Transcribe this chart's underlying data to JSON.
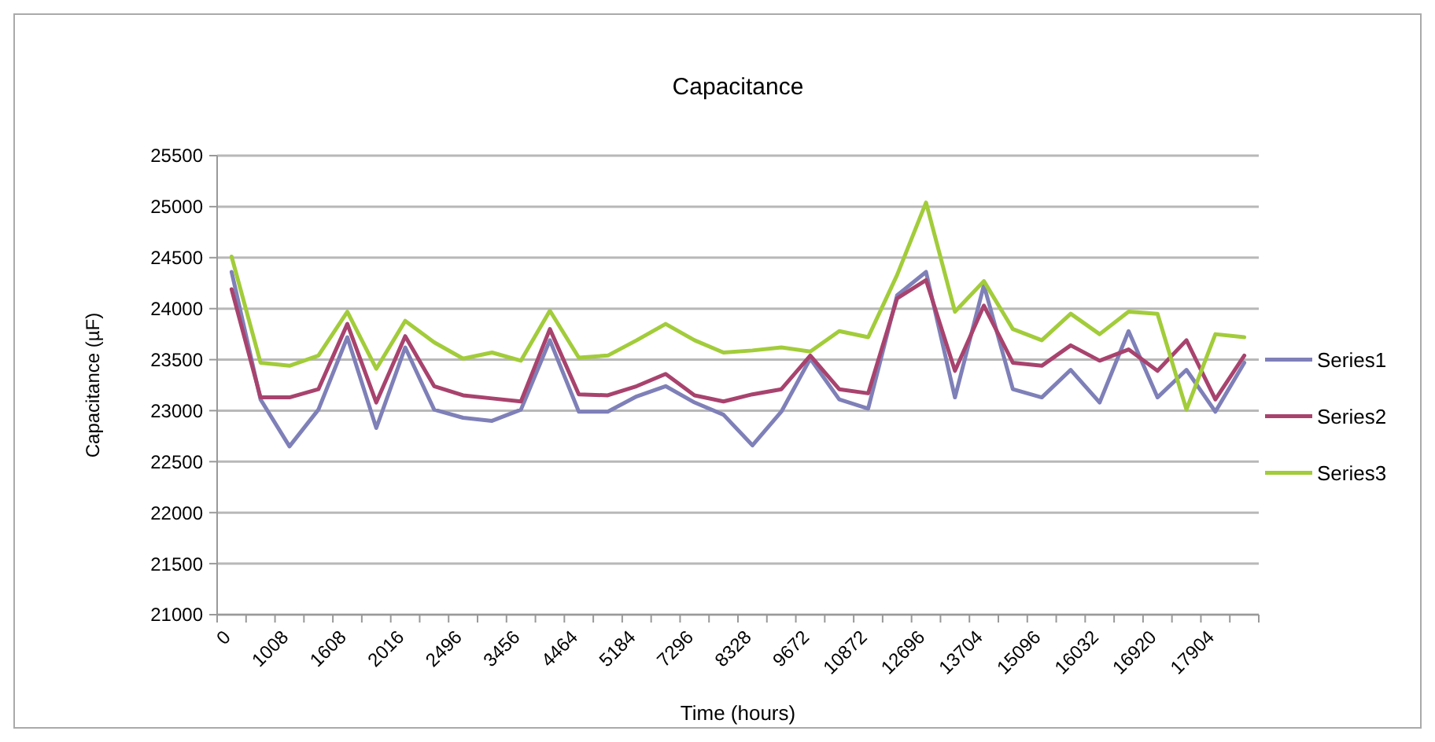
{
  "chart_data": {
    "type": "line",
    "title": "Capacitance",
    "xlabel": "Time (hours)",
    "ylabel": "Capacitance (µF)",
    "categories": [
      "0",
      null,
      "1008",
      null,
      "1608",
      null,
      "2016",
      null,
      "2496",
      null,
      "3456",
      null,
      "4464",
      null,
      "5184",
      null,
      "7296",
      null,
      "8328",
      null,
      "9672",
      null,
      "10872",
      null,
      "12696",
      null,
      "13704",
      null,
      "15096",
      null,
      "16032",
      null,
      "16920",
      null,
      "17904",
      null
    ],
    "series": [
      {
        "name": "Series1",
        "color": "#7f80b8",
        "values": [
          24360,
          23110,
          22650,
          23010,
          23720,
          22830,
          23620,
          23010,
          22930,
          22900,
          23010,
          23690,
          22990,
          22990,
          23140,
          23240,
          23080,
          22960,
          22660,
          22990,
          23510,
          23110,
          23020,
          24130,
          24360,
          23130,
          24230,
          23210,
          23130,
          23400,
          23080,
          23780,
          23130,
          23400,
          22990,
          23470
        ]
      },
      {
        "name": "Series2",
        "color": "#a8436e",
        "values": [
          24190,
          23130,
          23130,
          23210,
          23850,
          23080,
          23730,
          23240,
          23150,
          23120,
          23090,
          23800,
          23160,
          23150,
          23240,
          23360,
          23150,
          23090,
          23160,
          23210,
          23540,
          23210,
          23170,
          24100,
          24280,
          23390,
          24030,
          23470,
          23440,
          23640,
          23490,
          23600,
          23390,
          23690,
          23110,
          23540
        ]
      },
      {
        "name": "Series3",
        "color": "#a2cc3a",
        "values": [
          24510,
          23470,
          23440,
          23540,
          23970,
          23410,
          23880,
          23670,
          23510,
          23570,
          23490,
          23980,
          23520,
          23540,
          23690,
          23850,
          23690,
          23570,
          23590,
          23620,
          23580,
          23780,
          23720,
          24330,
          25040,
          23970,
          24270,
          23800,
          23690,
          23950,
          23750,
          23970,
          23950,
          23010,
          23750,
          23720
        ]
      }
    ],
    "ylim": [
      21000,
      25500
    ],
    "yticks": [
      21000,
      21500,
      22000,
      22500,
      23000,
      23500,
      24000,
      24500,
      25000,
      25500
    ],
    "grid": "y",
    "legend": "right",
    "marker": "none",
    "line_style": "solid"
  }
}
